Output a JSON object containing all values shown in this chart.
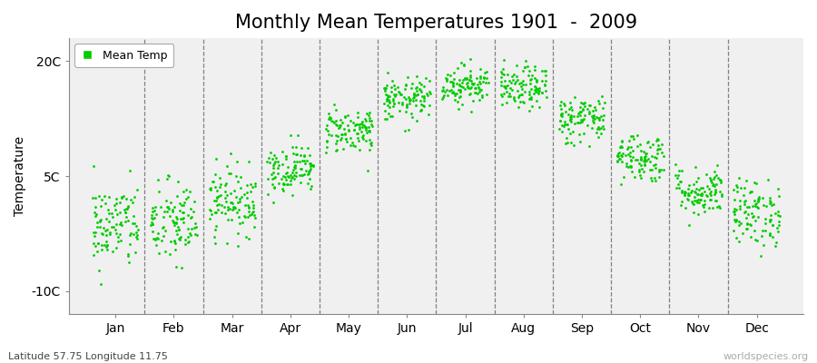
{
  "title": "Monthly Mean Temperatures 1901  -  2009",
  "ylabel": "Temperature",
  "xlabel_bottom": "Latitude 57.75 Longitude 11.75",
  "watermark": "worldspecies.org",
  "months": [
    "Jan",
    "Feb",
    "Mar",
    "Apr",
    "May",
    "Jun",
    "Jul",
    "Aug",
    "Sep",
    "Oct",
    "Nov",
    "Dec"
  ],
  "monthly_means": [
    -1.5,
    -1.2,
    1.8,
    6.0,
    11.0,
    15.0,
    17.0,
    16.5,
    12.5,
    7.5,
    3.0,
    0.2
  ],
  "monthly_stds": [
    2.8,
    2.8,
    2.2,
    1.6,
    1.5,
    1.4,
    1.3,
    1.4,
    1.6,
    1.6,
    1.6,
    2.2
  ],
  "n_years": 109,
  "dot_color": "#00cc00",
  "dot_size": 4,
  "yticks": [
    -10,
    5,
    20
  ],
  "ytick_labels": [
    "-10C",
    "5C",
    "20C"
  ],
  "ylim": [
    -13,
    23
  ],
  "xlim": [
    -0.3,
    12.3
  ],
  "background_color": "#f0f0f0",
  "legend_label": "Mean Temp",
  "title_fontsize": 15,
  "axis_label_fontsize": 10,
  "tick_fontsize": 10
}
